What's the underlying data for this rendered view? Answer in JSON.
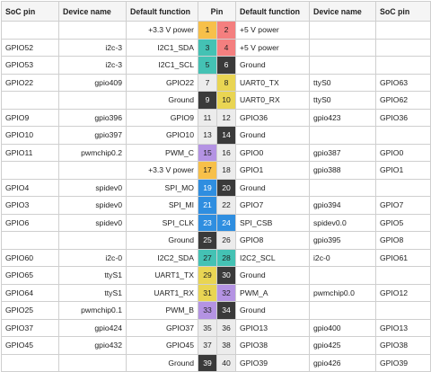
{
  "headers": [
    "SoC pin",
    "Device name",
    "Default function",
    "Pin",
    "Default function",
    "Device name",
    "SoC pin"
  ],
  "colors": {
    "power3v3": "#f7c04a",
    "power5v": "#f47f7f",
    "i2c": "#44c2b4",
    "ground": "#3a3a3a",
    "uart": "#e9d553",
    "pwm": "#b493e3",
    "spi": "#2f8ee0",
    "gpio": "#ececec"
  },
  "rows": [
    {
      "l_soc": "",
      "l_dev": "",
      "l_func": "+3.3 V power",
      "l_pin": "1",
      "l_type": "power3v3",
      "r_pin": "2",
      "r_type": "power5v",
      "r_func": "+5 V power",
      "r_dev": "",
      "r_soc": ""
    },
    {
      "l_soc": "GPIO52",
      "l_dev": "i2c-3",
      "l_func": "I2C1_SDA",
      "l_pin": "3",
      "l_type": "i2c",
      "r_pin": "4",
      "r_type": "power5v",
      "r_func": "+5 V power",
      "r_dev": "",
      "r_soc": ""
    },
    {
      "l_soc": "GPIO53",
      "l_dev": "i2c-3",
      "l_func": "I2C1_SCL",
      "l_pin": "5",
      "l_type": "i2c",
      "r_pin": "6",
      "r_type": "ground",
      "r_func": "Ground",
      "r_dev": "",
      "r_soc": ""
    },
    {
      "l_soc": "GPIO22",
      "l_dev": "gpio409",
      "l_func": "GPIO22",
      "l_pin": "7",
      "l_type": "gpio",
      "r_pin": "8",
      "r_type": "uart",
      "r_func": "UART0_TX",
      "r_dev": "ttyS0",
      "r_soc": "GPIO63"
    },
    {
      "l_soc": "",
      "l_dev": "",
      "l_func": "Ground",
      "l_pin": "9",
      "l_type": "ground",
      "r_pin": "10",
      "r_type": "uart",
      "r_func": "UART0_RX",
      "r_dev": "ttyS0",
      "r_soc": "GPIO62"
    },
    {
      "l_soc": "GPIO9",
      "l_dev": "gpio396",
      "l_func": "GPIO9",
      "l_pin": "11",
      "l_type": "gpio",
      "r_pin": "12",
      "r_type": "gpio",
      "r_func": "GPIO36",
      "r_dev": "gpio423",
      "r_soc": "GPIO36"
    },
    {
      "l_soc": "GPIO10",
      "l_dev": "gpio397",
      "l_func": "GPIO10",
      "l_pin": "13",
      "l_type": "gpio",
      "r_pin": "14",
      "r_type": "ground",
      "r_func": "Ground",
      "r_dev": "",
      "r_soc": ""
    },
    {
      "l_soc": "GPIO11",
      "l_dev": "pwmchip0.2",
      "l_func": "PWM_C",
      "l_pin": "15",
      "l_type": "pwm",
      "r_pin": "16",
      "r_type": "gpio",
      "r_func": "GPIO0",
      "r_dev": "gpio387",
      "r_soc": "GPIO0"
    },
    {
      "l_soc": "",
      "l_dev": "",
      "l_func": "+3.3 V power",
      "l_pin": "17",
      "l_type": "power3v3",
      "r_pin": "18",
      "r_type": "gpio",
      "r_func": "GPIO1",
      "r_dev": "gpio388",
      "r_soc": "GPIO1"
    },
    {
      "l_soc": "GPIO4",
      "l_dev": "spidev0",
      "l_func": "SPI_MO",
      "l_pin": "19",
      "l_type": "spi",
      "r_pin": "20",
      "r_type": "ground",
      "r_func": "Ground",
      "r_dev": "",
      "r_soc": ""
    },
    {
      "l_soc": "GPIO3",
      "l_dev": "spidev0",
      "l_func": "SPI_MI",
      "l_pin": "21",
      "l_type": "spi",
      "r_pin": "22",
      "r_type": "gpio",
      "r_func": "GPIO7",
      "r_dev": "gpio394",
      "r_soc": "GPIO7"
    },
    {
      "l_soc": "GPIO6",
      "l_dev": "spidev0",
      "l_func": "SPI_CLK",
      "l_pin": "23",
      "l_type": "spi",
      "r_pin": "24",
      "r_type": "spi",
      "r_func": "SPI_CSB",
      "r_dev": "spidev0.0",
      "r_soc": "GPIO5"
    },
    {
      "l_soc": "",
      "l_dev": "",
      "l_func": "Ground",
      "l_pin": "25",
      "l_type": "ground",
      "r_pin": "26",
      "r_type": "gpio",
      "r_func": "GPIO8",
      "r_dev": "gpio395",
      "r_soc": "GPIO8"
    },
    {
      "l_soc": "GPIO60",
      "l_dev": "i2c-0",
      "l_func": "I2C2_SDA",
      "l_pin": "27",
      "l_type": "i2c",
      "r_pin": "28",
      "r_type": "i2c",
      "r_func": "I2C2_SCL",
      "r_dev": "i2c-0",
      "r_soc": "GPIO61"
    },
    {
      "l_soc": "GPIO65",
      "l_dev": "ttyS1",
      "l_func": "UART1_TX",
      "l_pin": "29",
      "l_type": "uart",
      "r_pin": "30",
      "r_type": "ground",
      "r_func": "Ground",
      "r_dev": "",
      "r_soc": ""
    },
    {
      "l_soc": "GPIO64",
      "l_dev": "ttyS1",
      "l_func": "UART1_RX",
      "l_pin": "31",
      "l_type": "uart",
      "r_pin": "32",
      "r_type": "pwm",
      "r_func": "PWM_A",
      "r_dev": "pwmchip0.0",
      "r_soc": "GPIO12"
    },
    {
      "l_soc": "GPIO25",
      "l_dev": "pwmchip0.1",
      "l_func": "PWM_B",
      "l_pin": "33",
      "l_type": "pwm",
      "r_pin": "34",
      "r_type": "ground",
      "r_func": "Ground",
      "r_dev": "",
      "r_soc": ""
    },
    {
      "l_soc": "GPIO37",
      "l_dev": "gpio424",
      "l_func": "GPIO37",
      "l_pin": "35",
      "l_type": "gpio",
      "r_pin": "36",
      "r_type": "gpio",
      "r_func": "GPIO13",
      "r_dev": "gpio400",
      "r_soc": "GPIO13"
    },
    {
      "l_soc": "GPIO45",
      "l_dev": "gpio432",
      "l_func": "GPIO45",
      "l_pin": "37",
      "l_type": "gpio",
      "r_pin": "38",
      "r_type": "gpio",
      "r_func": "GPIO38",
      "r_dev": "gpio425",
      "r_soc": "GPIO38"
    },
    {
      "l_soc": "",
      "l_dev": "",
      "l_func": "Ground",
      "l_pin": "39",
      "l_type": "ground",
      "r_pin": "40",
      "r_type": "gpio",
      "r_func": "GPIO39",
      "r_dev": "gpio426",
      "r_soc": "GPIO39"
    }
  ]
}
